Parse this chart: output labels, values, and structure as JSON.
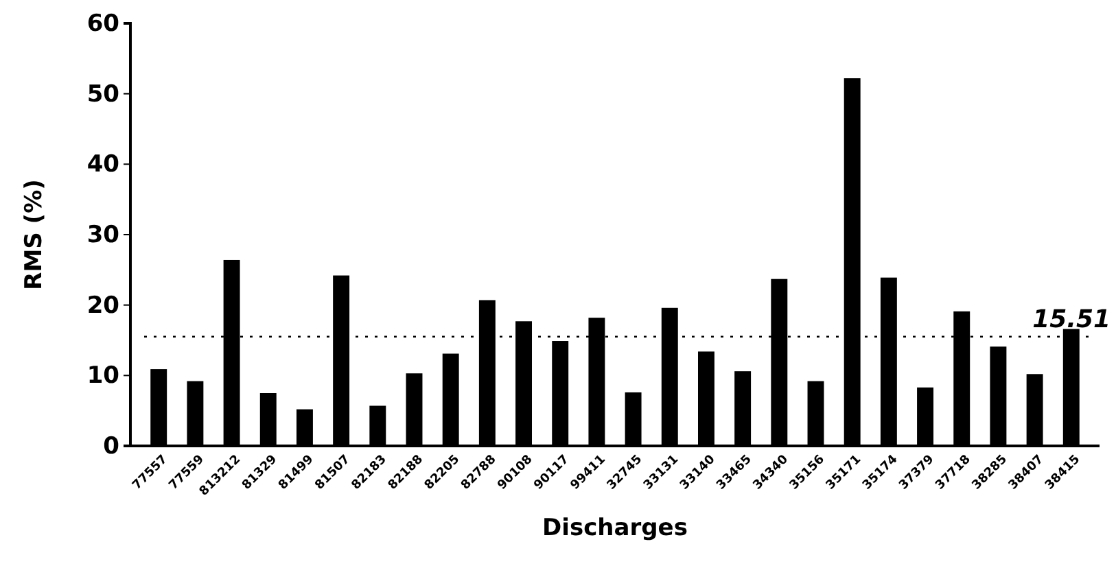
{
  "chart_data": {
    "type": "bar",
    "xlabel": "Discharges",
    "ylabel": "RMS (%)",
    "categories": [
      "77557",
      "77559",
      "813212",
      "81329",
      "81499",
      "81507",
      "82183",
      "82188",
      "82205",
      "82788",
      "90108",
      "90117",
      "99411",
      "32745",
      "33131",
      "33140",
      "33465",
      "34340",
      "35156",
      "35171",
      "35174",
      "37379",
      "37718",
      "38285",
      "38407",
      "38415"
    ],
    "values": [
      10.9,
      9.2,
      26.4,
      7.5,
      5.2,
      24.2,
      5.7,
      10.3,
      13.1,
      20.7,
      17.7,
      14.9,
      18.2,
      7.6,
      19.6,
      13.4,
      10.6,
      23.7,
      9.2,
      52.2,
      23.9,
      8.3,
      19.1,
      14.1,
      10.2,
      16.6
    ],
    "color": "#000000",
    "ylim": [
      0,
      60
    ],
    "yticks": [
      0,
      10,
      20,
      30,
      40,
      50,
      60
    ],
    "grid": false,
    "ref_lines": [
      {
        "axis": "y",
        "value": 15.51,
        "label": "15.51",
        "line_style": "dotted",
        "color": "#000000"
      }
    ]
  }
}
